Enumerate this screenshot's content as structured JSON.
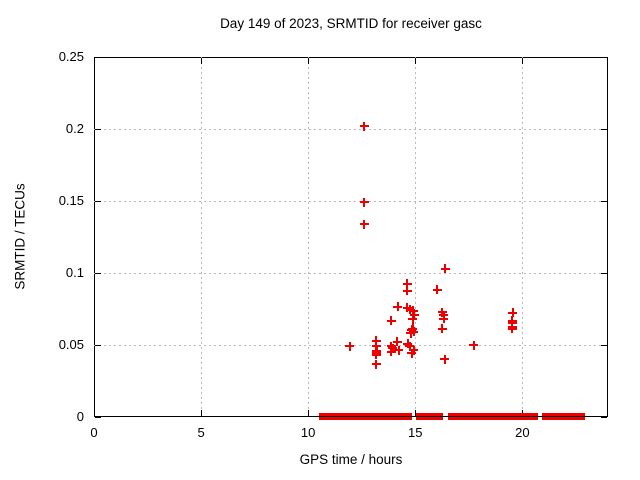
{
  "title": "Day 149 of 2023, SRMTID for receiver gasc",
  "chart_data": {
    "type": "scatter",
    "title": "Day 149 of 2023, SRMTID for receiver gasc",
    "xlabel": "GPS time / hours",
    "ylabel": "SRMTID / TECUs",
    "xlim": [
      0,
      24
    ],
    "ylim": [
      0,
      0.25
    ],
    "xticks": [
      0,
      5,
      10,
      15,
      20
    ],
    "xtick_labels": [
      "0",
      "5",
      "10",
      "15",
      "20"
    ],
    "yticks": [
      0,
      0.05,
      0.1,
      0.15,
      0.2,
      0.25
    ],
    "ytick_labels": [
      "0",
      "0.05",
      "0.1",
      "0.15",
      "0.2",
      "0.25"
    ],
    "grid": true,
    "legend": "none",
    "marker": "plus",
    "marker_color": "#ee0000",
    "grid_color": "#b9b9b9",
    "text_color": "#000000",
    "series": [
      {
        "name": "SRMTID",
        "points": [
          [
            12.61,
            0.202
          ],
          [
            12.61,
            0.149
          ],
          [
            12.63,
            0.134
          ],
          [
            16.4,
            0.103
          ],
          [
            14.63,
            0.0925
          ],
          [
            14.63,
            0.0878
          ],
          [
            16.02,
            0.0885
          ],
          [
            14.19,
            0.0765
          ],
          [
            14.63,
            0.0757
          ],
          [
            14.76,
            0.0745
          ],
          [
            14.9,
            0.0737
          ],
          [
            14.95,
            0.0711
          ],
          [
            14.88,
            0.0678
          ],
          [
            13.87,
            0.067
          ],
          [
            14.88,
            0.0614
          ],
          [
            14.93,
            0.0591
          ],
          [
            16.26,
            0.0728
          ],
          [
            16.34,
            0.0707
          ],
          [
            16.34,
            0.0684
          ],
          [
            16.27,
            0.0614
          ],
          [
            19.56,
            0.0725
          ],
          [
            19.52,
            0.067
          ],
          [
            19.53,
            0.0652
          ],
          [
            19.53,
            0.0628
          ],
          [
            19.52,
            0.0612
          ],
          [
            11.94,
            0.049
          ],
          [
            13.18,
            0.0529
          ],
          [
            13.18,
            0.0493
          ],
          [
            13.2,
            0.0461
          ],
          [
            13.18,
            0.0443
          ],
          [
            13.18,
            0.0431
          ],
          [
            13.18,
            0.0366
          ],
          [
            13.87,
            0.0493
          ],
          [
            13.96,
            0.0476
          ],
          [
            13.87,
            0.0452
          ],
          [
            14.15,
            0.0522
          ],
          [
            14.24,
            0.0465
          ],
          [
            14.66,
            0.051
          ],
          [
            14.74,
            0.0493
          ],
          [
            14.79,
            0.0582
          ],
          [
            14.84,
            0.0605
          ],
          [
            14.84,
            0.0443
          ],
          [
            14.92,
            0.0465
          ],
          [
            16.37,
            0.0401
          ],
          [
            17.72,
            0.05
          ]
        ]
      }
    ],
    "zero_value_runs_hours": [
      [
        10.51,
        14.83
      ],
      [
        15.03,
        16.31
      ],
      [
        16.54,
        20.74
      ],
      [
        20.9,
        22.93
      ]
    ]
  }
}
